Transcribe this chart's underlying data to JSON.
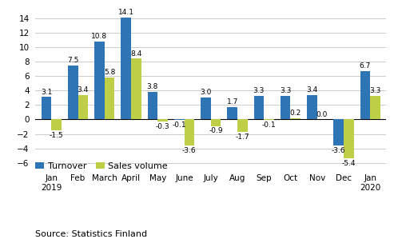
{
  "categories": [
    "Jan\n2019",
    "Feb",
    "March",
    "April",
    "May",
    "June",
    "July",
    "Aug",
    "Sep",
    "Oct",
    "Nov",
    "Dec",
    "Jan\n2020"
  ],
  "turnover": [
    3.1,
    7.5,
    10.8,
    14.1,
    3.8,
    -0.1,
    3.0,
    1.7,
    3.3,
    3.3,
    3.4,
    -3.6,
    6.7
  ],
  "sales_volume": [
    -1.5,
    3.4,
    5.8,
    8.4,
    -0.3,
    -3.6,
    -0.9,
    -1.7,
    -0.1,
    0.2,
    0.0,
    -5.4,
    3.3
  ],
  "turnover_color": "#2E75B6",
  "sales_volume_color": "#BFCE47",
  "ylim": [
    -7,
    15.5
  ],
  "yticks": [
    -6,
    -4,
    -2,
    0,
    2,
    4,
    6,
    8,
    10,
    12,
    14
  ],
  "legend_labels": [
    "Turnover",
    "Sales volume"
  ],
  "source_text": "Source: Statistics Finland",
  "bar_width": 0.38,
  "label_fontsize": 6.5,
  "tick_fontsize": 7.5,
  "legend_fontsize": 8,
  "source_fontsize": 8
}
